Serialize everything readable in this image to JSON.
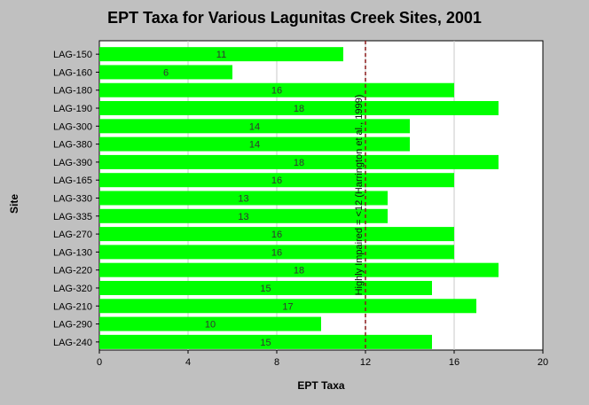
{
  "chart_data": {
    "type": "bar",
    "orientation": "horizontal",
    "title": "EPT Taxa for Various Lagunitas Creek Sites, 2001",
    "xlabel": "EPT Taxa",
    "ylabel": "Site",
    "xlim": [
      0,
      20
    ],
    "x_ticks": [
      0,
      4,
      8,
      12,
      16,
      20
    ],
    "grid": "vertical",
    "categories": [
      "LAG-150",
      "LAG-160",
      "LAG-180",
      "LAG-190",
      "LAG-300",
      "LAG-380",
      "LAG-390",
      "LAG-165",
      "LAG-330",
      "LAG-335",
      "LAG-270",
      "LAG-130",
      "LAG-220",
      "LAG-320",
      "LAG-210",
      "LAG-290",
      "LAG-240"
    ],
    "values": [
      11,
      6,
      16,
      18,
      14,
      14,
      18,
      16,
      13,
      13,
      16,
      16,
      18,
      15,
      17,
      10,
      15
    ],
    "reference_line": {
      "value": 12,
      "label": "Highly Impaired = <12 (Harrington et al., 1999)",
      "color": "#8b1a1a"
    },
    "colors": {
      "bar": "#00ff00",
      "plot_background": "#ffffff",
      "page_background": "#c0c0c0"
    }
  }
}
